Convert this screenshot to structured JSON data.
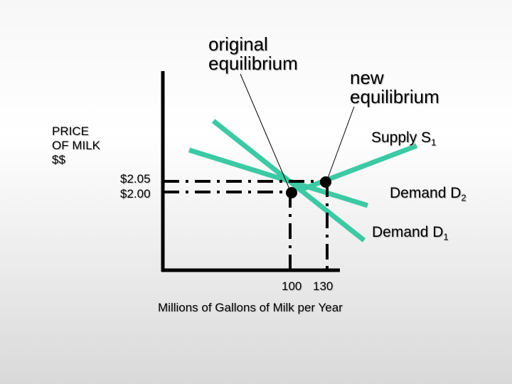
{
  "annotations": {
    "original": [
      "original",
      "equilibrium"
    ],
    "new": [
      "new",
      "equilibrium"
    ]
  },
  "y_axis_label": [
    "PRICE",
    "OF MILK",
    "$$"
  ],
  "price_ticks": [
    "$2.05",
    "$2.00"
  ],
  "quantity_ticks": [
    "100",
    "130"
  ],
  "x_axis_label": "Millions of Gallons of Milk per Year",
  "curves": {
    "supply": {
      "name": "Supply S",
      "sub": "1"
    },
    "demand2": {
      "name": "Demand D",
      "sub": "2"
    },
    "demand1": {
      "name": "Demand D",
      "sub": "1"
    }
  },
  "colors": {
    "curve": "#3cc9a4",
    "axis": "#000000"
  }
}
